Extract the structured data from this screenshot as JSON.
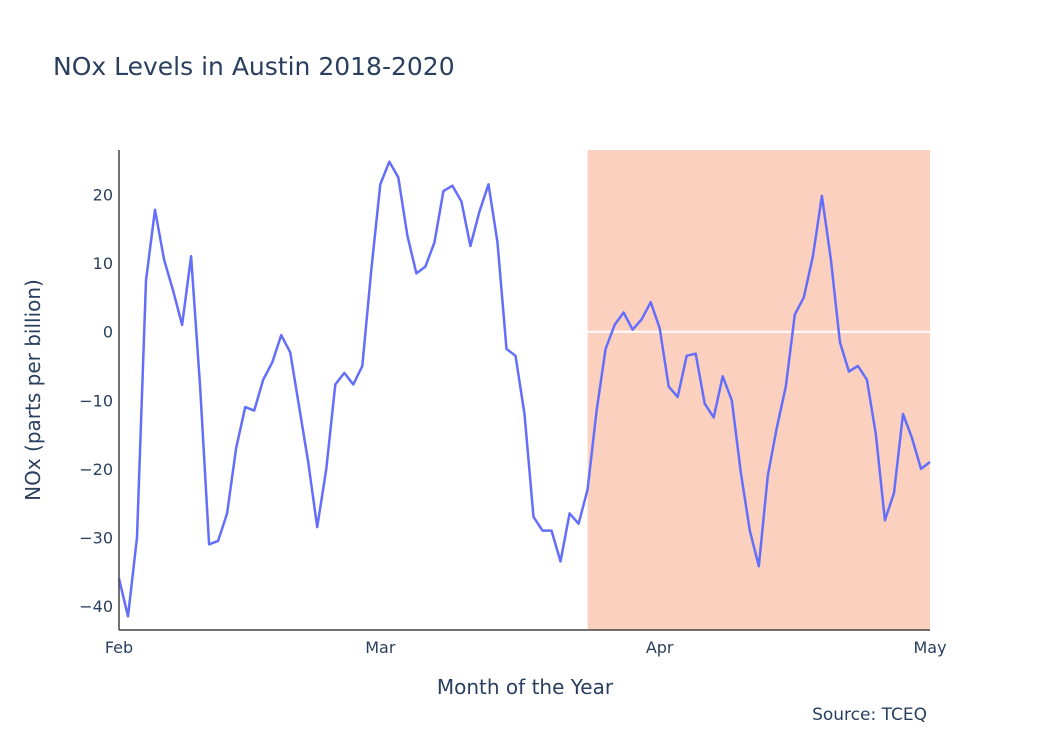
{
  "chart_data": {
    "type": "line",
    "title": "NOx Levels in Austin 2018-2020",
    "xlabel": "Month of the Year",
    "ylabel": "NOx (parts per billion)",
    "source": "Source: TCEQ",
    "x_start": "2020-02-01",
    "x_range": [
      "2020-02-01",
      "2020-05-01"
    ],
    "ylim": [
      -43.5,
      26.5
    ],
    "x_ticks": [
      {
        "date": "2020-02-01",
        "label": "Feb"
      },
      {
        "date": "2020-03-01",
        "label": "Mar"
      },
      {
        "date": "2020-04-01",
        "label": "Apr"
      },
      {
        "date": "2020-05-01",
        "label": "May"
      }
    ],
    "y_ticks": [
      {
        "value": 20,
        "label": "20"
      },
      {
        "value": 10,
        "label": "10"
      },
      {
        "value": 0,
        "label": "0"
      },
      {
        "value": -10,
        "label": "−10"
      },
      {
        "value": -20,
        "label": "−20"
      },
      {
        "value": -30,
        "label": "−30"
      },
      {
        "value": -40,
        "label": "−40"
      }
    ],
    "shaded_region": {
      "x0": "2020-03-24",
      "x1": "2020-05-01",
      "color": "#fcd0bf"
    },
    "zero_line_in_region": true,
    "grid": false,
    "colors": {
      "line": "#636efa",
      "zero_line": "#ffffff",
      "axis": "#444444"
    },
    "series": [
      {
        "values": [
          -36,
          -41.5,
          -30,
          7.5,
          17.8,
          10.5,
          6,
          1,
          11,
          -8,
          -31,
          -30.5,
          -26.5,
          -17,
          -11,
          -11.5,
          -7,
          -4.5,
          -0.5,
          -3,
          -11,
          -19,
          -28.5,
          -20,
          -7.7,
          -6,
          -7.7,
          -5,
          9,
          21.5,
          24.8,
          22.5,
          14,
          8.5,
          9.5,
          13,
          20.5,
          21.3,
          19,
          12.5,
          17.5,
          21.5,
          13,
          -2.5,
          -3.5,
          -12,
          -27,
          -29,
          -29,
          -33.5,
          -26.5,
          -28,
          -23,
          -11.5,
          -2.5,
          1,
          2.8,
          0.3,
          1.8,
          4.3,
          0.5,
          -8,
          -9.5,
          -3.5,
          -3.2,
          -10.5,
          -12.5,
          -6.5,
          -10,
          -20.5,
          -29,
          -34.2,
          -21,
          -14,
          -8,
          2.5,
          5,
          11,
          19.8,
          10.5,
          -1.5,
          -5.8,
          -5,
          -7,
          -15,
          -27.5,
          -23.5,
          -12,
          -15.5,
          -20,
          -19
        ]
      }
    ]
  }
}
